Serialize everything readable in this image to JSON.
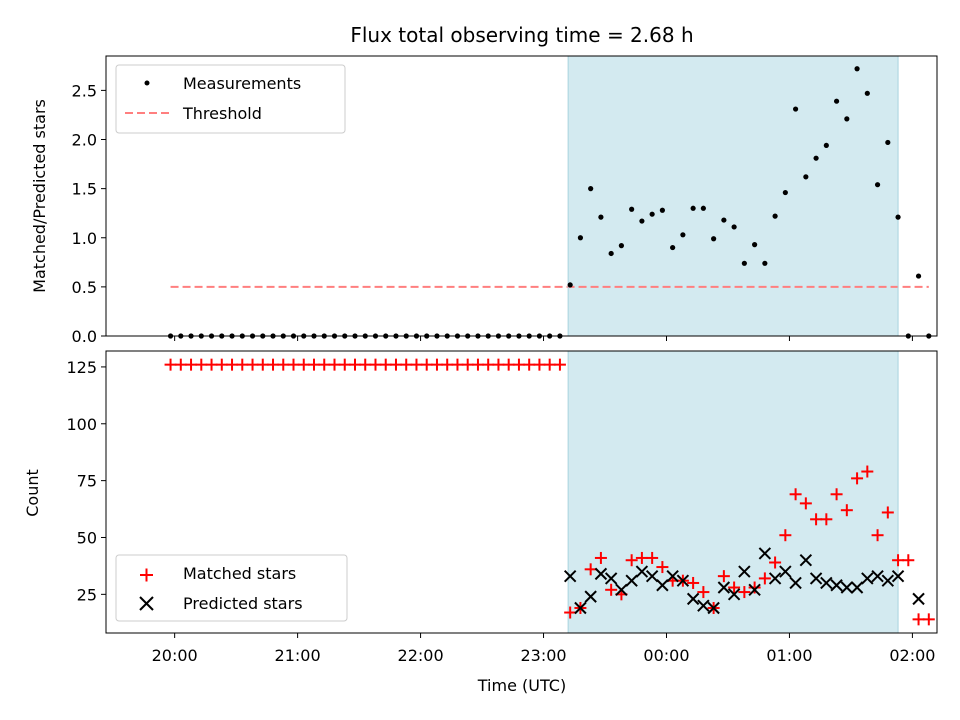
{
  "chart_data": [
    {
      "type": "scatter",
      "panel": "top",
      "title": "Flux total observing time = 2.68 h",
      "ylabel": "Matched/Predicted stars",
      "xlabel": "",
      "ylim": [
        0,
        2.85
      ],
      "yticks": [
        "0.0",
        "0.5",
        "1.0",
        "1.5",
        "2.0",
        "2.5"
      ],
      "grid": false,
      "legend_position": "upper-left",
      "observing_window": {
        "start": "23:12",
        "end": "01:53",
        "color": "#d3eaf0"
      },
      "series": [
        {
          "name": "Measurements",
          "marker": "dot",
          "color": "#000000",
          "x": [
            "19:58",
            "20:03",
            "20:08",
            "20:13",
            "20:18",
            "20:23",
            "20:28",
            "20:33",
            "20:38",
            "20:43",
            "20:48",
            "20:53",
            "20:58",
            "21:03",
            "21:08",
            "21:13",
            "21:18",
            "21:23",
            "21:28",
            "21:33",
            "21:38",
            "21:43",
            "21:48",
            "21:53",
            "21:58",
            "22:03",
            "22:08",
            "22:13",
            "22:18",
            "22:23",
            "22:28",
            "22:33",
            "22:38",
            "22:43",
            "22:48",
            "22:53",
            "22:58",
            "23:03",
            "23:08",
            "23:13",
            "23:18",
            "23:23",
            "23:28",
            "23:33",
            "23:38",
            "23:43",
            "23:48",
            "23:53",
            "23:58",
            "00:03",
            "00:08",
            "00:13",
            "00:18",
            "00:23",
            "00:28",
            "00:33",
            "00:38",
            "00:43",
            "00:48",
            "00:53",
            "00:58",
            "01:03",
            "01:08",
            "01:13",
            "01:18",
            "01:23",
            "01:28",
            "01:33",
            "01:38",
            "01:43",
            "01:48",
            "01:53",
            "01:58",
            "02:03",
            "02:08"
          ],
          "y": [
            0,
            0,
            0,
            0,
            0,
            0,
            0,
            0,
            0,
            0,
            0,
            0,
            0,
            0,
            0,
            0,
            0,
            0,
            0,
            0,
            0,
            0,
            0,
            0,
            0,
            0,
            0,
            0,
            0,
            0,
            0,
            0,
            0,
            0,
            0,
            0,
            0,
            0,
            0,
            0.52,
            1.0,
            1.5,
            1.21,
            0.84,
            0.92,
            1.29,
            1.17,
            1.24,
            1.28,
            0.9,
            1.03,
            1.3,
            1.3,
            0.99,
            1.18,
            1.11,
            0.74,
            0.93,
            0.74,
            1.22,
            1.46,
            2.31,
            1.62,
            1.81,
            1.94,
            2.39,
            2.21,
            2.72,
            2.47,
            1.54,
            1.97,
            1.21,
            0.0,
            0.61,
            0.0
          ]
        },
        {
          "name": "Threshold",
          "marker": "dashed-line",
          "color": "#ff7f7f",
          "x": [
            "19:58",
            "02:08"
          ],
          "y": [
            0.5,
            0.5
          ]
        }
      ]
    },
    {
      "type": "scatter",
      "panel": "bottom",
      "title": "",
      "xlabel": "Time (UTC)",
      "ylabel": "Count",
      "ylim": [
        8,
        132
      ],
      "yticks": [
        "25",
        "50",
        "75",
        "100",
        "125"
      ],
      "xticks": [
        "20:00",
        "21:00",
        "22:00",
        "23:00",
        "00:00",
        "01:00",
        "02:00"
      ],
      "grid": false,
      "legend_position": "lower-left",
      "observing_window": {
        "start": "23:12",
        "end": "01:53",
        "color": "#d3eaf0"
      },
      "series": [
        {
          "name": "Matched stars",
          "marker": "plus",
          "color": "#ff0000",
          "x": [
            "19:58",
            "20:03",
            "20:08",
            "20:13",
            "20:18",
            "20:23",
            "20:28",
            "20:33",
            "20:38",
            "20:43",
            "20:48",
            "20:53",
            "20:58",
            "21:03",
            "21:08",
            "21:13",
            "21:18",
            "21:23",
            "21:28",
            "21:33",
            "21:38",
            "21:43",
            "21:48",
            "21:53",
            "21:58",
            "22:03",
            "22:08",
            "22:13",
            "22:18",
            "22:23",
            "22:28",
            "22:33",
            "22:38",
            "22:43",
            "22:48",
            "22:53",
            "22:58",
            "23:03",
            "23:08",
            "23:13",
            "23:18",
            "23:23",
            "23:28",
            "23:33",
            "23:38",
            "23:43",
            "23:48",
            "23:53",
            "23:58",
            "00:03",
            "00:08",
            "00:13",
            "00:18",
            "00:23",
            "00:28",
            "00:33",
            "00:38",
            "00:43",
            "00:48",
            "00:53",
            "00:58",
            "01:03",
            "01:08",
            "01:13",
            "01:18",
            "01:23",
            "01:28",
            "01:33",
            "01:38",
            "01:43",
            "01:48",
            "01:53",
            "01:58",
            "02:03",
            "02:08"
          ],
          "y": [
            126,
            126,
            126,
            126,
            126,
            126,
            126,
            126,
            126,
            126,
            126,
            126,
            126,
            126,
            126,
            126,
            126,
            126,
            126,
            126,
            126,
            126,
            126,
            126,
            126,
            126,
            126,
            126,
            126,
            126,
            126,
            126,
            126,
            126,
            126,
            126,
            126,
            126,
            126,
            17,
            19,
            36,
            41,
            27,
            25,
            40,
            41,
            41,
            37,
            31,
            31,
            30,
            26,
            19,
            33,
            28,
            26,
            28,
            32,
            39,
            51,
            69,
            65,
            58,
            58,
            69,
            62,
            76,
            79,
            51,
            61,
            40,
            40,
            14,
            14
          ]
        },
        {
          "name": "Predicted stars",
          "marker": "x",
          "color": "#000000",
          "x": [
            "23:13",
            "23:18",
            "23:23",
            "23:28",
            "23:33",
            "23:38",
            "23:43",
            "23:48",
            "23:53",
            "23:58",
            "00:03",
            "00:08",
            "00:13",
            "00:18",
            "00:23",
            "00:28",
            "00:33",
            "00:38",
            "00:43",
            "00:48",
            "00:53",
            "00:58",
            "01:03",
            "01:08",
            "01:13",
            "01:18",
            "01:23",
            "01:28",
            "01:33",
            "01:38",
            "01:43",
            "01:48",
            "01:53",
            "02:03"
          ],
          "y": [
            33,
            19,
            24,
            34,
            32,
            27,
            31,
            35,
            33,
            29,
            33,
            31,
            23,
            20,
            19,
            28,
            25,
            35,
            27,
            43,
            32,
            35,
            30,
            40,
            32,
            30,
            29,
            28,
            28,
            32,
            33,
            31,
            33,
            23
          ]
        }
      ]
    }
  ]
}
